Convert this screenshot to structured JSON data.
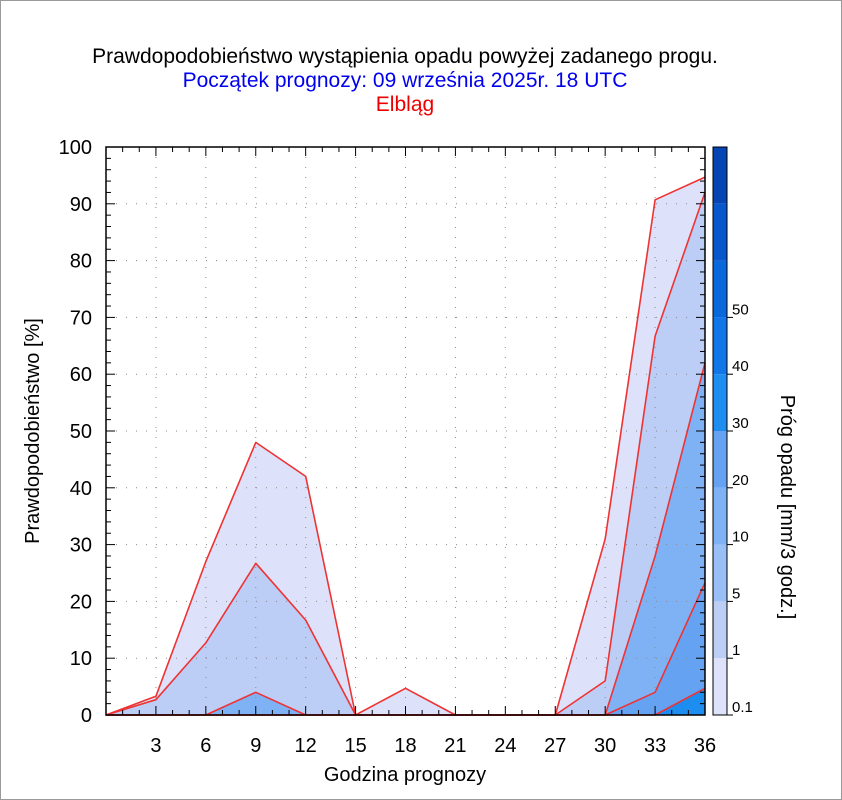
{
  "colors": {
    "title": "#000000",
    "subtitle": "#0000ee",
    "location": "#ee0000",
    "series_line": "#ee3333"
  },
  "chart_data": {
    "type": "area",
    "title": "Prawdopodobieństwo wystąpienia opadu powyżej zadanego progu.",
    "subtitle": "Początek prognozy: 09 września 2025r. 18 UTC",
    "location": "Elbląg",
    "xlabel": "Godzina prognozy",
    "ylabel": "Prawdopodobieństwo [%]",
    "colorbar_label": "Próg opadu [mm/3 godz.]",
    "xlim": [
      0,
      36
    ],
    "ylim": [
      0,
      100
    ],
    "x_ticks": [
      3,
      6,
      9,
      12,
      15,
      18,
      21,
      24,
      27,
      30,
      33,
      36
    ],
    "y_ticks": [
      0,
      10,
      20,
      30,
      40,
      50,
      60,
      70,
      80,
      90,
      100
    ],
    "x": [
      0,
      3,
      6,
      9,
      12,
      15,
      18,
      21,
      24,
      27,
      30,
      33,
      36
    ],
    "series": [
      {
        "threshold": "0.1",
        "color": "#dde2fa",
        "values": [
          0,
          3.3,
          27,
          48,
          42,
          0,
          4.7,
          0,
          0,
          0,
          31,
          90.7,
          94.7
        ]
      },
      {
        "threshold": "1",
        "color": "#bccdf6",
        "values": [
          0,
          2.7,
          12.7,
          26.7,
          16.7,
          0,
          0,
          0,
          0,
          0,
          6,
          66.7,
          92
        ]
      },
      {
        "threshold": "5",
        "color": "#7fb1f5",
        "values": [
          0,
          0,
          0,
          4,
          0,
          0,
          0,
          0,
          0,
          0,
          0,
          28,
          62
        ]
      },
      {
        "threshold": "10",
        "color": "#66a2f2",
        "values": [
          0,
          0,
          0,
          0,
          0,
          0,
          0,
          0,
          0,
          0,
          0,
          4,
          23.3
        ]
      },
      {
        "threshold": "20",
        "color": "#1d8ef0",
        "values": [
          0,
          0,
          0,
          0,
          0,
          0,
          0,
          0,
          0,
          0,
          0,
          0,
          4.7
        ]
      }
    ],
    "colorbar": {
      "labels": [
        "0.1",
        "1",
        "5",
        "10",
        "20",
        "30",
        "40",
        "50"
      ],
      "bands": [
        {
          "from": 0,
          "to": 1,
          "color": "#dde2fa"
        },
        {
          "from": 1,
          "to": 2,
          "color": "#bccdf6"
        },
        {
          "from": 2,
          "to": 3,
          "color": "#99bff6"
        },
        {
          "from": 3,
          "to": 4,
          "color": "#7fb1f5"
        },
        {
          "from": 4,
          "to": 5,
          "color": "#66a2f2"
        },
        {
          "from": 5,
          "to": 6,
          "color": "#1d8ef0"
        },
        {
          "from": 6,
          "to": 7,
          "color": "#1177e8"
        },
        {
          "from": 7,
          "to": 8,
          "color": "#0a68dd"
        },
        {
          "from": 8,
          "to": 9,
          "color": "#0756cc"
        },
        {
          "from": 9,
          "to": 10,
          "color": "#0444b3"
        }
      ],
      "max_index": 10
    }
  }
}
